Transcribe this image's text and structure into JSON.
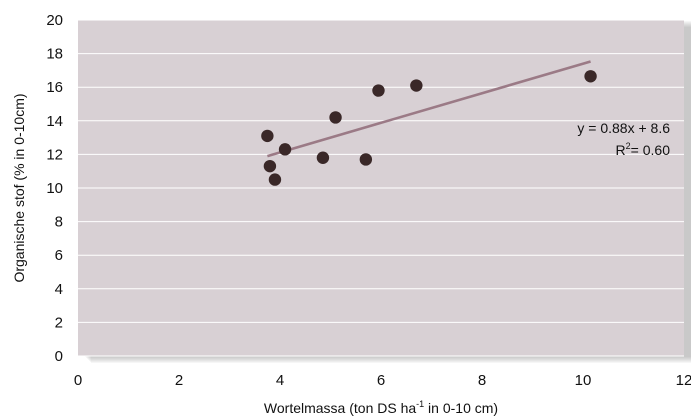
{
  "chart_data": {
    "type": "scatter",
    "xlabel_main": "Wortelmassa (ton DS ha",
    "xlabel_sup": "-1",
    "xlabel_tail": " in 0-10 cm)",
    "ylabel": "Organische stof (% in 0-10cm)",
    "xlim": [
      0,
      12
    ],
    "ylim": [
      0,
      20
    ],
    "xticks": [
      0,
      2,
      4,
      6,
      8,
      10,
      12
    ],
    "yticks": [
      0,
      2,
      4,
      6,
      8,
      10,
      12,
      14,
      16,
      18,
      20
    ],
    "grid": "horizontal",
    "points": [
      {
        "x": 3.75,
        "y": 13.1
      },
      {
        "x": 3.8,
        "y": 11.3
      },
      {
        "x": 3.9,
        "y": 10.5
      },
      {
        "x": 4.1,
        "y": 12.3
      },
      {
        "x": 4.85,
        "y": 11.8
      },
      {
        "x": 5.1,
        "y": 14.2
      },
      {
        "x": 5.7,
        "y": 11.7
      },
      {
        "x": 5.95,
        "y": 15.8
      },
      {
        "x": 6.7,
        "y": 16.1
      },
      {
        "x": 10.15,
        "y": 16.65
      }
    ],
    "trendline": {
      "slope": 0.88,
      "intercept": 8.6,
      "x_range": [
        3.75,
        10.15
      ]
    },
    "equation": "y = 0.88x + 8.6",
    "r2_label": "R",
    "r2_sup": "2",
    "r2_value": "= 0.60",
    "colors": {
      "plot_bg": "#d8d0d4",
      "grid": "#ffffff",
      "points": "#3a2828",
      "trendline": "#9b7a86",
      "shadow": "#7a7a7a"
    }
  }
}
